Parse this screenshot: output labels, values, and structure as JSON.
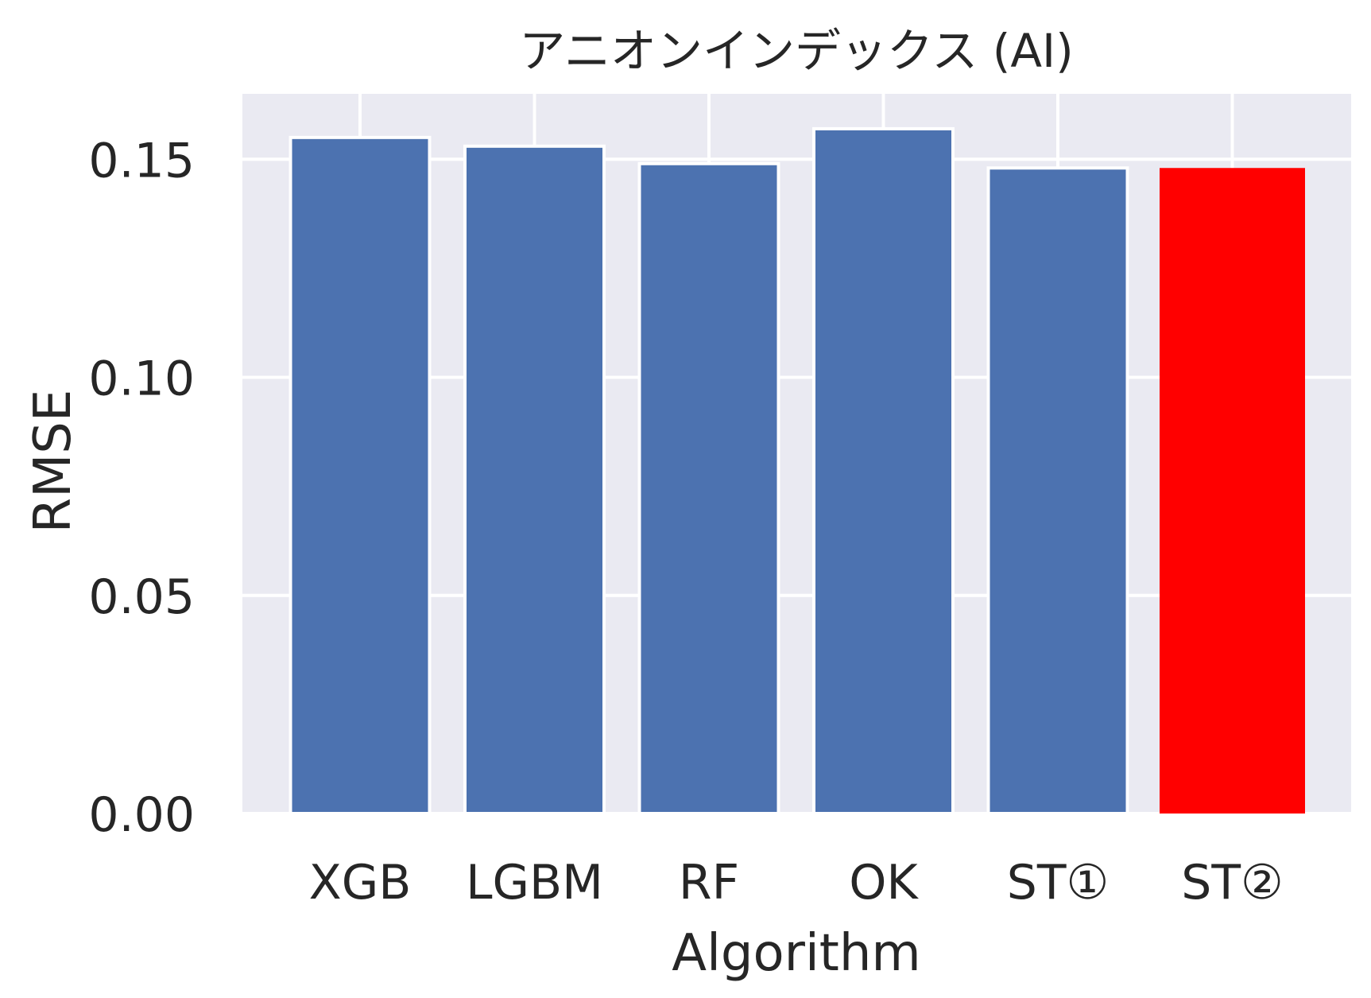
{
  "chart_data": {
    "type": "bar",
    "title": "アニオンインデックス (AI)",
    "xlabel": "Algorithm",
    "ylabel": "RMSE",
    "categories": [
      "XGB",
      "LGBM",
      "RF",
      "OK",
      "ST①",
      "ST②"
    ],
    "values": [
      0.155,
      0.153,
      0.149,
      0.157,
      0.148,
      0.148
    ],
    "bar_colors": [
      "#4c72b0",
      "#4c72b0",
      "#4c72b0",
      "#4c72b0",
      "#4c72b0",
      "#ff0000"
    ],
    "ylim": [
      0,
      0.165
    ],
    "yticks": [
      "0.00",
      "0.05",
      "0.10",
      "0.15"
    ],
    "grid": true,
    "background_color": "#eaeaf2",
    "grid_color": "#ffffff"
  }
}
